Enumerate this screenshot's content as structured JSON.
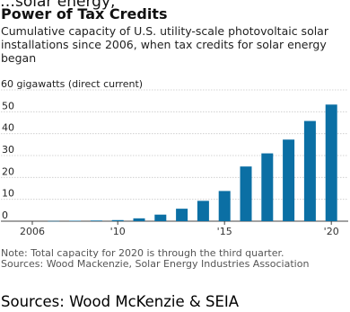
{
  "header": {
    "cut_line": "…solar energy,",
    "title": "Power of Tax Credits",
    "subtitle": "Cumulative capacity of U.S. utility-scale photovoltaic solar installations since 2006, when tax credits for solar energy began",
    "unit_label": "60 gigawatts (direct current)"
  },
  "chart_data": {
    "type": "bar",
    "title": "Power of Tax Credits",
    "ylabel": "60 gigawatts (direct current)",
    "ylim": [
      0,
      60
    ],
    "yticks": [
      0,
      10,
      20,
      30,
      40,
      50,
      60
    ],
    "ytick_labels": [
      "0",
      "10",
      "20",
      "30",
      "40",
      "50",
      ""
    ],
    "grid": true,
    "categories": [
      2006,
      2007,
      2008,
      2009,
      2010,
      2011,
      2012,
      2013,
      2014,
      2015,
      2016,
      2017,
      2018,
      2019,
      2020
    ],
    "values": [
      0,
      0.1,
      0.2,
      0.3,
      0.5,
      1.3,
      3,
      5.7,
      9.3,
      13.8,
      25,
      31,
      37.3,
      45.8,
      53.3
    ],
    "xtick_labels": [
      {
        "year": 2006,
        "label": "2006"
      },
      {
        "year": 2010,
        "label": "'10"
      },
      {
        "year": 2015,
        "label": "'15"
      },
      {
        "year": 2020,
        "label": "'20"
      }
    ],
    "bar_color": "#0b6fa4"
  },
  "notes": {
    "note": "Note: Total capacity for 2020 is through the third quarter.",
    "sources": "Sources: Wood Mackenzie, Solar Energy Industries Association"
  },
  "footer": {
    "sources": "Sources: Wood McKenzie & SEIA"
  }
}
